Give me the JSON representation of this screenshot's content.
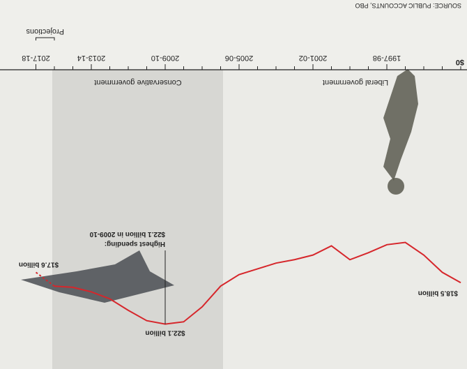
{
  "chart_data": {
    "type": "line",
    "source": "SOURCE: PUBLIC ACCOUNTS, PBO",
    "categories": [
      null,
      null,
      null,
      null,
      "1997-98",
      null,
      null,
      null,
      "2001-02",
      null,
      null,
      null,
      "2005-06",
      null,
      null,
      null,
      "2009-10",
      null,
      null,
      null,
      "2013-14",
      null,
      null,
      "2017-18"
    ],
    "series": [
      {
        "color": "#d6262b",
        "line_style": "solid",
        "values": [
          18.5,
          17.6,
          16.1,
          15.0,
          15.2,
          15.9,
          16.5,
          15.3,
          16.1,
          16.5,
          16.8,
          17.3,
          17.8,
          18.8,
          20.6,
          21.9,
          22.1,
          21.8,
          20.9,
          19.9,
          19.3,
          18.9,
          18.8,
          null
        ]
      },
      {
        "color": "#d6262b",
        "line_style": "dashed",
        "values": [
          null,
          null,
          null,
          null,
          null,
          null,
          null,
          null,
          null,
          null,
          null,
          null,
          null,
          null,
          null,
          null,
          null,
          null,
          null,
          null,
          null,
          null,
          18.8,
          17.6
        ]
      }
    ],
    "ylim": [
      0,
      26
    ],
    "yticks": [
      {
        "value": 0,
        "label": "$0"
      }
    ],
    "annotations": {
      "start": "$18.5 billion",
      "peak": "$22.1 billion",
      "end": "$17.6 billion",
      "highest_title": "Highest spending:",
      "highest_text": "$22.1 billion in 2009-10",
      "liberal": "Liberal government",
      "conservative": "Conservative government",
      "projections": "Projections"
    },
    "liberal_color": "#c0392b",
    "conservative_color": "#2c3e8c"
  }
}
